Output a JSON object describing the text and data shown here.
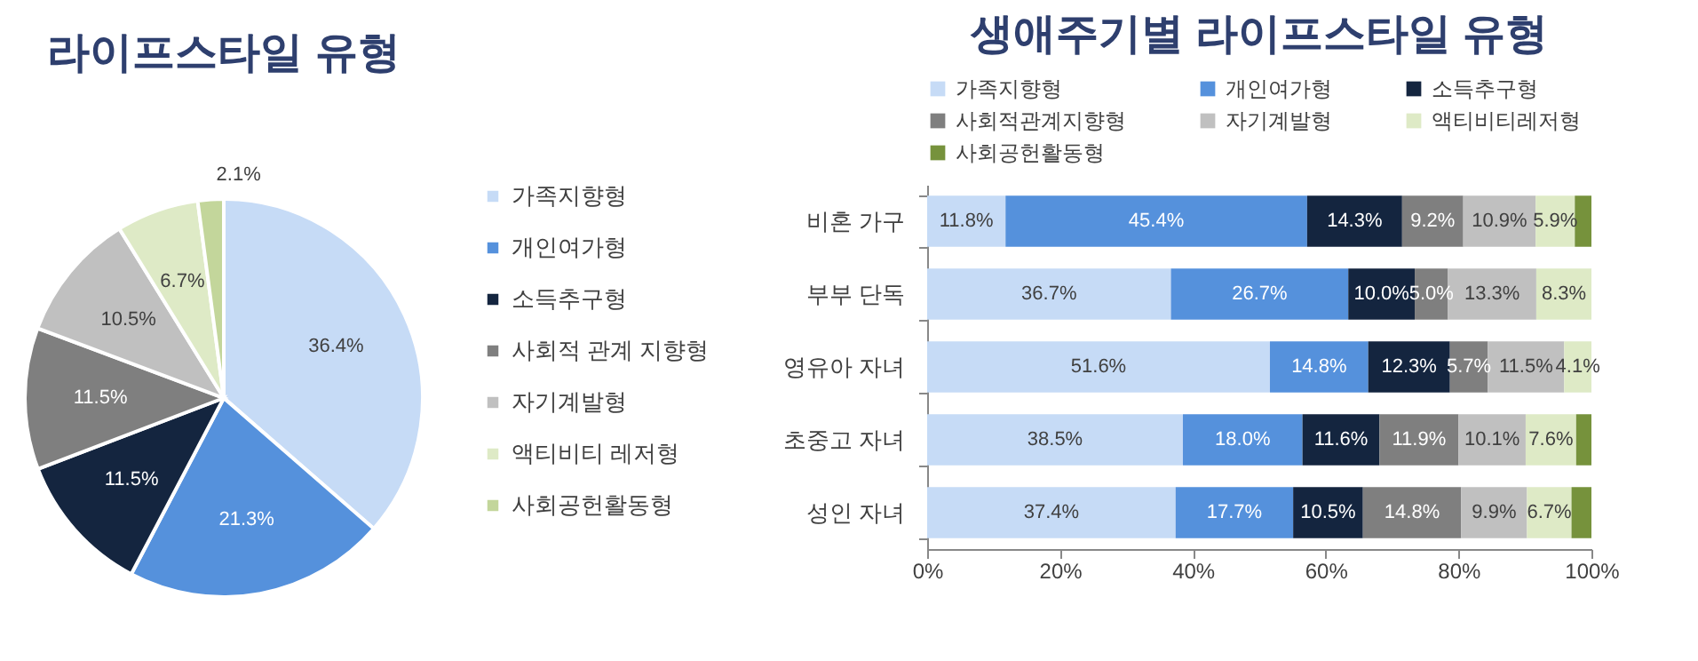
{
  "chart_data": [
    {
      "type": "pie",
      "title": "라이프스타일 유형",
      "legend": "right",
      "categories": [
        "가족지향형",
        "개인여가형",
        "소득추구형",
        "사회적 관계 지향형",
        "자기계발형",
        "액티비티 레저형",
        "사회공헌활동형"
      ],
      "values": [
        36.4,
        21.3,
        11.5,
        11.5,
        10.5,
        6.7,
        2.1
      ],
      "colors": [
        "#c6dbf6",
        "#5591dc",
        "#14253f",
        "#7f7f7f",
        "#c0c0c0",
        "#deeac6",
        "#c3d69b"
      ],
      "value_labels": [
        "36.4%",
        "21.3%",
        "11.5%",
        "11.5%",
        "10.5%",
        "6.7%",
        "2.1%"
      ]
    },
    {
      "type": "bar",
      "title": "생애주기별 라이프스타일 유형",
      "orientation": "horizontal",
      "stacked": true,
      "legend": "top",
      "categories": [
        "비혼 가구",
        "부부 단독",
        "영유아 자녀",
        "초중고 자녀",
        "성인 자녀"
      ],
      "xlim": [
        0,
        100
      ],
      "xticks": [
        {
          "value": 0,
          "label": "0%"
        },
        {
          "value": 20,
          "label": "20%"
        },
        {
          "value": 40,
          "label": "40%"
        },
        {
          "value": 60,
          "label": "60%"
        },
        {
          "value": 80,
          "label": "80%"
        },
        {
          "value": 100,
          "label": "100%"
        }
      ],
      "series": [
        {
          "name": "가족지향형",
          "color": "#c6dbf6",
          "values": [
            11.8,
            36.7,
            51.6,
            38.5,
            37.4
          ],
          "value_labels": [
            "11.8%",
            "36.7%",
            "51.6%",
            "38.5%",
            "37.4%"
          ]
        },
        {
          "name": "개인여가형",
          "color": "#5591dc",
          "values": [
            45.4,
            26.7,
            14.8,
            18.0,
            17.7
          ],
          "value_labels": [
            "45.4%",
            "26.7%",
            "14.8%",
            "18.0%",
            "17.7%"
          ]
        },
        {
          "name": "소득추구형",
          "color": "#14253f",
          "values": [
            14.3,
            10.0,
            12.3,
            11.6,
            10.5
          ],
          "value_labels": [
            "14.3%",
            "10.0%",
            "12.3%",
            "11.6%",
            "10.5%"
          ]
        },
        {
          "name": "사회적관계지향형",
          "color": "#7f7f7f",
          "values": [
            9.2,
            5.0,
            5.7,
            11.9,
            14.8
          ],
          "value_labels": [
            "9.2%",
            "5.0%",
            "5.7%",
            "11.9%",
            "14.8%"
          ]
        },
        {
          "name": "자기계발형",
          "color": "#c0c0c0",
          "values": [
            10.9,
            13.3,
            11.5,
            10.1,
            9.9
          ],
          "value_labels": [
            "10.9%",
            "13.3%",
            "11.5%",
            "10.1%",
            "9.9%"
          ]
        },
        {
          "name": "액티비티레저형",
          "color": "#deeac6",
          "values": [
            5.9,
            8.3,
            4.1,
            7.6,
            6.7
          ],
          "value_labels": [
            "5.9%",
            "8.3%",
            "4.1%",
            "7.6%",
            "6.7%"
          ]
        },
        {
          "name": "사회공헌활동형",
          "color": "#76923c",
          "values": [
            2.5,
            null,
            null,
            2.3,
            3.0
          ],
          "value_labels": [
            null,
            null,
            null,
            null,
            null
          ]
        }
      ]
    }
  ]
}
